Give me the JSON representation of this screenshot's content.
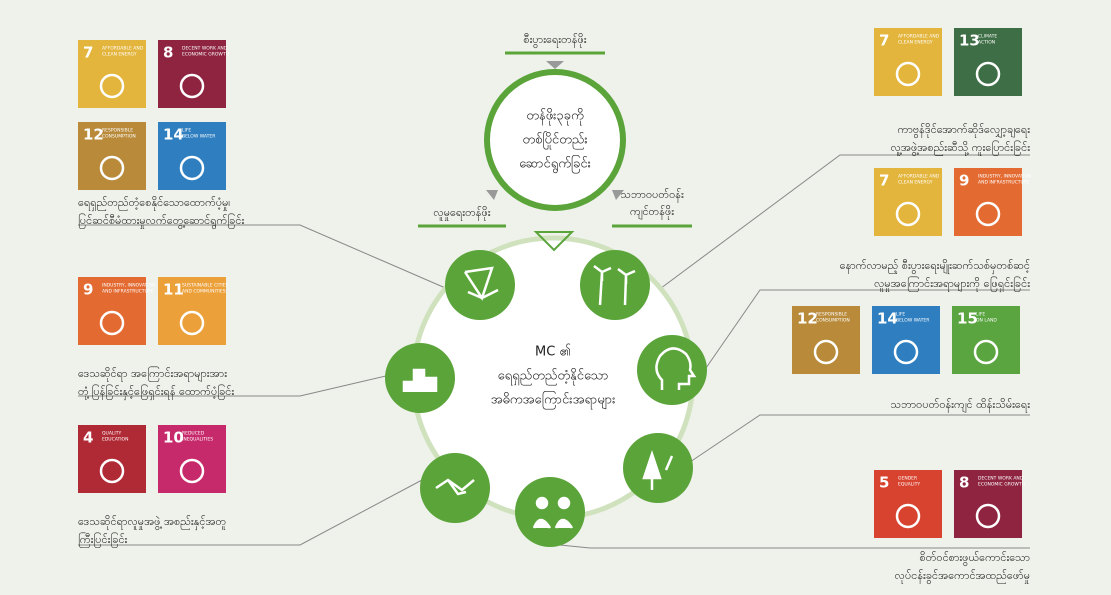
{
  "top_label": "စီးပွားရေးတန်ဖိုး",
  "left_label": "လူမှုရေးတန်ဖိုး",
  "right_label": [
    "သဘာဝပတ်ဝန်း",
    "ကျင်တန်ဖိုး"
  ],
  "top_circle": [
    "တန်ဖိုး၃ခုကို",
    "တစ်ပြိုင်တည်း",
    "ဆောင်ရွက်ခြင်း"
  ],
  "center": [
    "MC ၏",
    "ရေရှည်တည်တံ့နိုင်သော",
    "အဓိကအကြောင်းအရာများ"
  ],
  "groups": [
    {
      "side": "left",
      "text": [
        "ရေရှည်တည်တံ့စေနိုင်သောထောက်ပံ့မှု၊",
        "ပြင်ဆင်စီမံထားမှုလက်တွေ့ဆောင်ရွက်ခြင်း"
      ],
      "tiles": [
        {
          "number": "7",
          "label": [
            "AFFORDABLE AND",
            "CLEAN ENERGY"
          ],
          "color": "#e3b53c"
        },
        {
          "number": "8",
          "label": [
            "DECENT WORK AND",
            "ECONOMIC GROWTH"
          ],
          "color": "#8e2440"
        },
        {
          "number": "12",
          "label": [
            "RESPONSIBLE",
            "CONSUMPTION"
          ],
          "color": "#b88a3a"
        },
        {
          "number": "14",
          "label": [
            "LIFE",
            "BELOW WATER"
          ],
          "color": "#2f7fc0"
        }
      ]
    },
    {
      "side": "left",
      "text": [
        "ဒေသဆိုင်ရာ အကြောင်းအရာများအား",
        "တုံ့ပြန်ခြင်းနှင့်ဖြေရှင်းရန် ထောက်ပံ့ခြင်း"
      ],
      "tiles": [
        {
          "number": "9",
          "label": [
            "INDUSTRY, INNOVATION",
            "AND INFRASTRUCTURE"
          ],
          "color": "#e36b32"
        },
        {
          "number": "11",
          "label": [
            "SUSTAINABLE CITIES",
            "AND COMMUNITIES"
          ],
          "color": "#eba03a"
        }
      ]
    },
    {
      "side": "left",
      "text": [
        "ဒေသဆိုင်ရာလူမှုအဖွဲ့ အစည်းနှင့်အတူ",
        "ကြီးပြင်းခြင်း"
      ],
      "tiles": [
        {
          "number": "4",
          "label": [
            "QUALITY",
            "EDUCATION"
          ],
          "color": "#b02a36"
        },
        {
          "number": "10",
          "label": [
            "REDUCED",
            "INEQUALITIES"
          ],
          "color": "#c72a6b"
        }
      ]
    },
    {
      "side": "right",
      "text": [
        "ကာဗွန်ဒိုင်အောက်ဆိုဒ်လျှော့ချရေး",
        "လူ့အဖွဲ့အစည်းဆီသို့ ကူးပြောင်းခြင်း"
      ],
      "tiles": [
        {
          "number": "7",
          "label": [
            "AFFORDABLE AND",
            "CLEAN ENERGY"
          ],
          "color": "#e3b53c"
        },
        {
          "number": "13",
          "label": [
            "CLIMATE",
            "ACTION"
          ],
          "color": "#3d6e45"
        }
      ]
    },
    {
      "side": "right",
      "text": [
        "နောက်လာမည့် စီးပွားရေးမျိုးဆက်သစ်မှတစ်ဆင့်",
        "လူမှုအကြောင်းအရာများကို ဖြေရှင်းခြင်း"
      ],
      "tiles": [
        {
          "number": "7",
          "label": [
            "AFFORDABLE AND",
            "CLEAN ENERGY"
          ],
          "color": "#e3b53c"
        },
        {
          "number": "9",
          "label": [
            "INDUSTRY, INNOVATION",
            "AND INFRASTRUCTURE"
          ],
          "color": "#e36b32"
        }
      ]
    },
    {
      "side": "right",
      "text": [
        "သဘာဝပတ်ဝန်းကျင် ထိန်းသိမ်းရေး"
      ],
      "tiles": [
        {
          "number": "12",
          "label": [
            "RESPONSIBLE",
            "CONSUMPTION"
          ],
          "color": "#b88a3a"
        },
        {
          "number": "14",
          "label": [
            "LIFE",
            "BELOW WATER"
          ],
          "color": "#2f7fc0"
        },
        {
          "number": "15",
          "label": [
            "LIFE",
            "ON LAND"
          ],
          "color": "#5aa540"
        }
      ]
    },
    {
      "side": "right",
      "text": [
        "စိတ်ဝင်စားဖွယ်ကောင်းသော",
        "လုပ်ငန်းခွင်အကောင်အထည်ဖော်မှု"
      ],
      "tiles": [
        {
          "number": "5",
          "label": [
            "GENDER",
            "EQUALITY"
          ],
          "color": "#d8432f"
        },
        {
          "number": "8",
          "label": [
            "DECENT WORK AND",
            "ECONOMIC GROWTH"
          ],
          "color": "#8e2440"
        }
      ]
    }
  ]
}
